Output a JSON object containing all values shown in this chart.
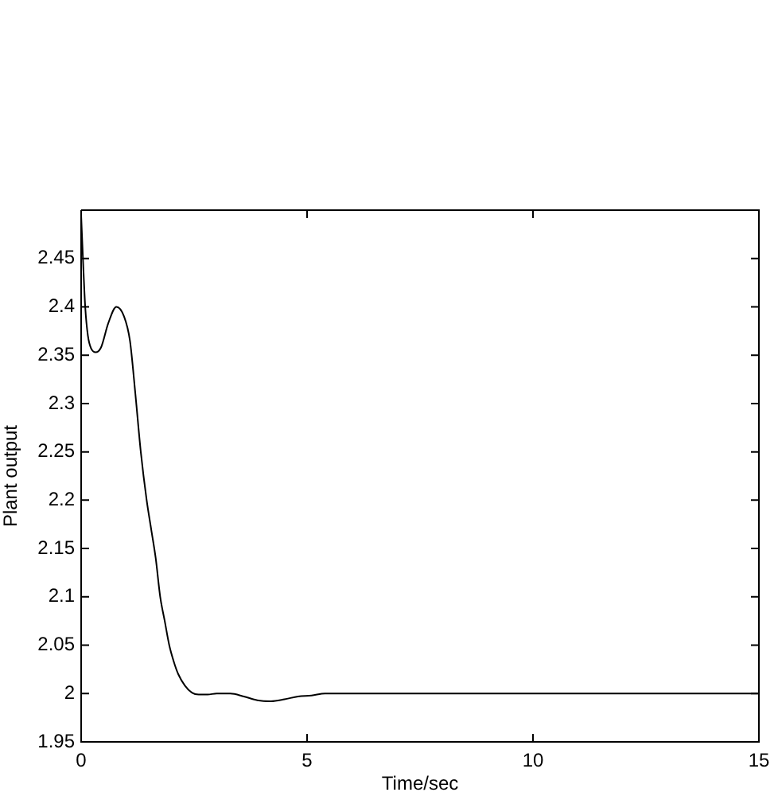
{
  "chart_data": {
    "type": "line",
    "xlabel": "Time/sec",
    "ylabel": "Plant output",
    "x": [
      0,
      0.04,
      0.09,
      0.15,
      0.22,
      0.32,
      0.44,
      0.6,
      0.78,
      0.95,
      1.08,
      1.2,
      1.32,
      1.45,
      1.55,
      1.65,
      1.75,
      1.85,
      1.95,
      2.05,
      2.15,
      2.3,
      2.45,
      2.6,
      2.8,
      3.0,
      3.3,
      3.6,
      3.9,
      4.2,
      4.5,
      4.8,
      5.1,
      5.4,
      15
    ],
    "series": [
      {
        "color": "#000000",
        "values": [
          2.495,
          2.45,
          2.4,
          2.37,
          2.357,
          2.353,
          2.358,
          2.383,
          2.4,
          2.39,
          2.365,
          2.31,
          2.25,
          2.2,
          2.17,
          2.14,
          2.1,
          2.075,
          2.05,
          2.033,
          2.02,
          2.008,
          2.001,
          1.999,
          1.999,
          2.0,
          2.0,
          1.997,
          1.993,
          1.992,
          1.994,
          1.997,
          1.998,
          2.0,
          2.0
        ]
      }
    ],
    "xlim": [
      0,
      15
    ],
    "ylim": [
      1.95,
      2.5
    ],
    "xticks": [
      0,
      5,
      10,
      15
    ],
    "yticks": [
      1.95,
      2,
      2.05,
      2.1,
      2.15,
      2.2,
      2.25,
      2.3,
      2.35,
      2.4,
      2.45
    ],
    "line_style": "solid"
  }
}
